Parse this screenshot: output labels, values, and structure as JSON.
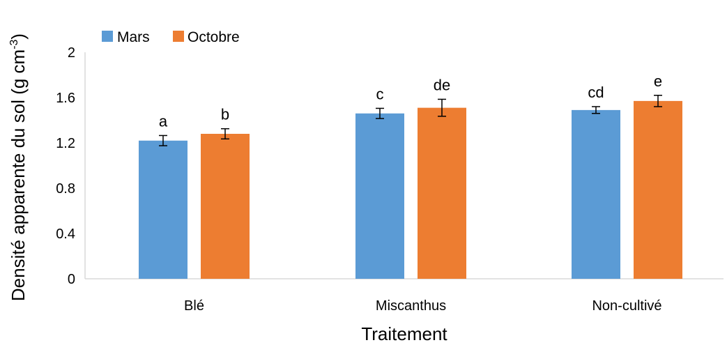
{
  "chart_data": {
    "type": "bar",
    "categories": [
      "Blé",
      "Miscanthus",
      "Non-cultivé"
    ],
    "series": [
      {
        "name": "Mars",
        "color": "#5b9bd5",
        "values": [
          1.22,
          1.46,
          1.49
        ],
        "errors": [
          0.045,
          0.045,
          0.03
        ],
        "labels": [
          "a",
          "c",
          "cd"
        ]
      },
      {
        "name": "Octobre",
        "color": "#ed7d31",
        "values": [
          1.28,
          1.51,
          1.57
        ],
        "errors": [
          0.045,
          0.075,
          0.05
        ],
        "labels": [
          "b",
          "de",
          "e"
        ]
      }
    ],
    "xlabel": "Traitement",
    "ylabel": "Densité apparente du sol (g cm",
    "ylabel_superscript": "-3",
    "ylabel_suffix": ")",
    "ylim": [
      0,
      2
    ],
    "yticks": [
      "0",
      "0.4",
      "0.8",
      "1.2",
      "1.6",
      "2"
    ],
    "grid": false,
    "legend_position": "top-left"
  }
}
